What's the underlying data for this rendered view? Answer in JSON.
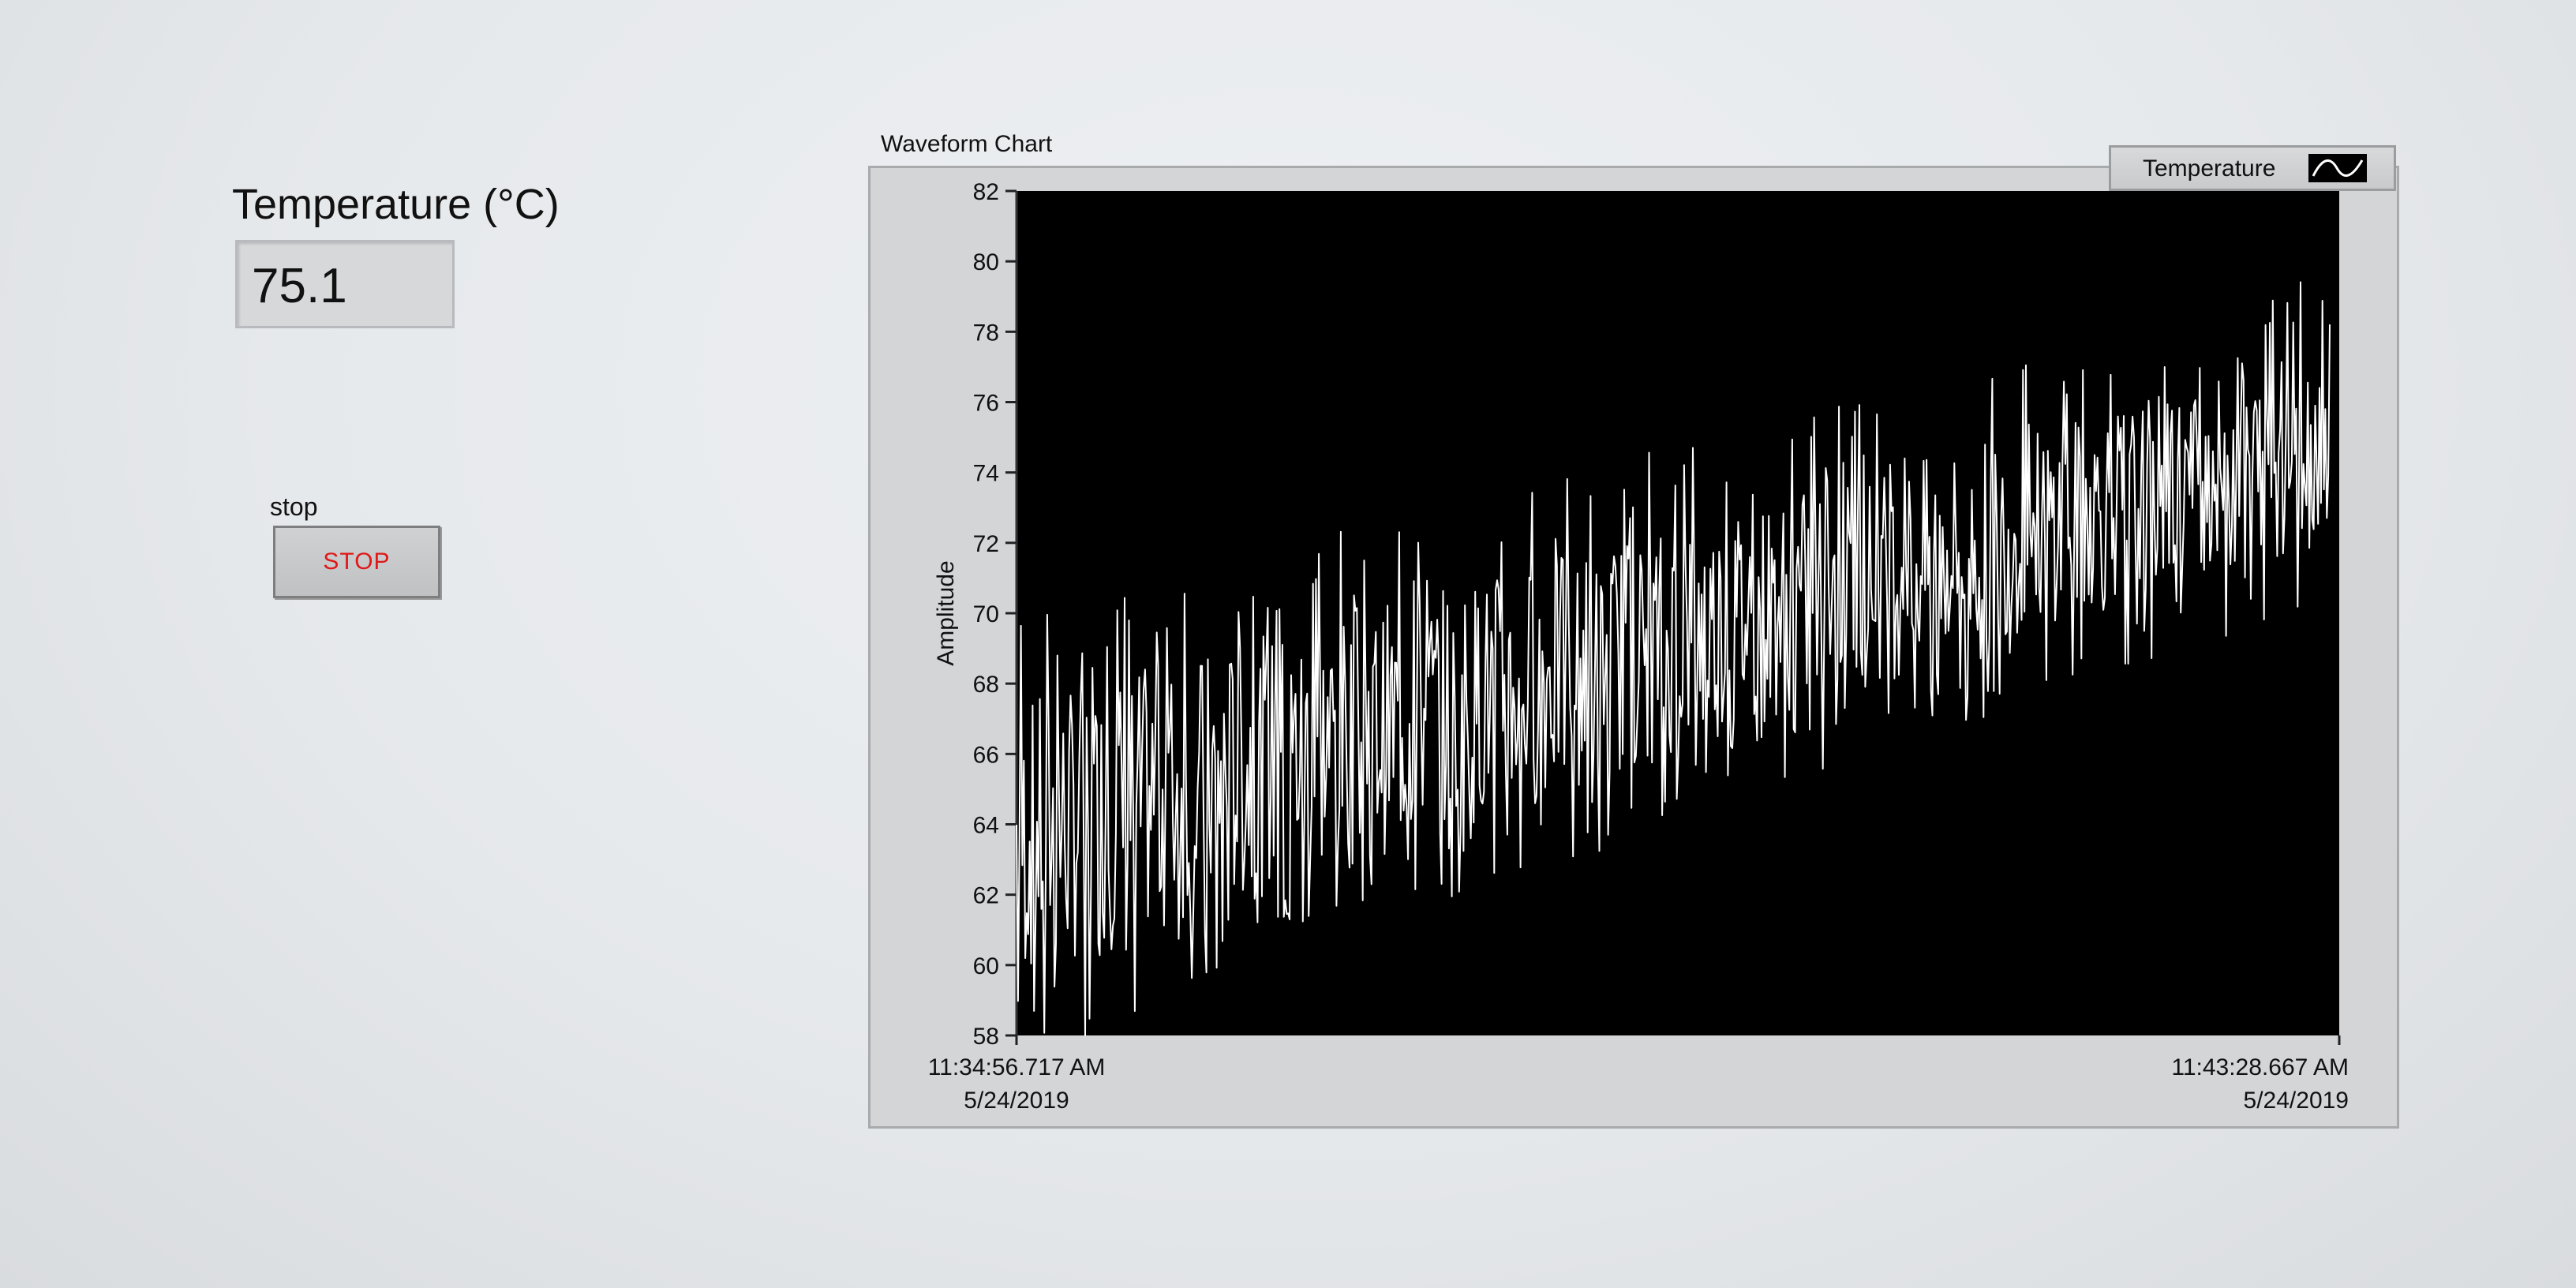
{
  "temperature_indicator": {
    "label": "Temperature (°C)",
    "value": "75.1"
  },
  "stop_control": {
    "label": "stop",
    "button_text": "STOP"
  },
  "chart_title": "Waveform Chart",
  "legend": {
    "label": "Temperature",
    "icon": "line-plot-icon"
  },
  "colors": {
    "plot_background": "#000000",
    "trace": "#ffffff",
    "stop_text": "#e01818"
  },
  "chart_data": {
    "type": "line",
    "title": "Waveform Chart",
    "ylabel": "Amplitude",
    "xlabel": "",
    "ylim": [
      58,
      82
    ],
    "y_ticks": [
      "82",
      "80",
      "78",
      "76",
      "74",
      "72",
      "70",
      "68",
      "66",
      "64",
      "62",
      "60",
      "58"
    ],
    "x_ticks": [
      {
        "time": "11:34:56.717 AM",
        "date": "5/24/2019"
      },
      {
        "time": "11:43:28.667 AM",
        "date": "5/24/2019"
      }
    ],
    "grid": false,
    "legend": "top-right",
    "series": [
      {
        "name": "Temperature",
        "trend": [
          {
            "t": "11:34:56.717 AM",
            "low": 59.5,
            "high": 67.5
          },
          {
            "t": "11:43:28.667 AM",
            "low": 72.5,
            "high": 77.5
          }
        ]
      }
    ]
  }
}
